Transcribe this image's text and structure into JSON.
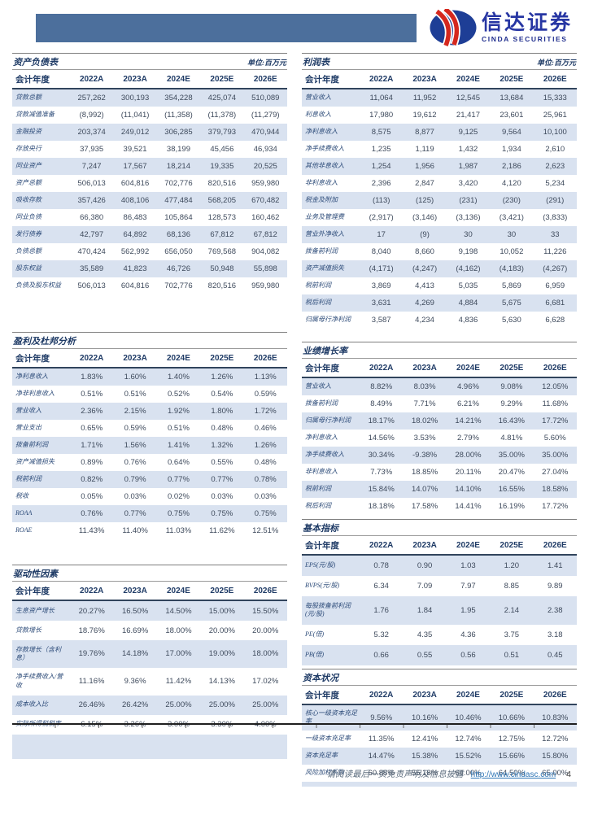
{
  "header": {
    "logo_cn": "信达证券",
    "logo_en": "CINDA SECURITIES",
    "bar_color": "#4C6F9C",
    "logo_blue": "#1E3E96",
    "logo_red": "#D5281E"
  },
  "footer": {
    "disclaimer": "请阅读最后一页免责声明及信息披露",
    "link": "http://www.cindasc.com",
    "page_number": "4"
  },
  "style": {
    "row_shade": "#D9E2F0",
    "header_navy": "#1F3B66"
  },
  "tables": {
    "balance_sheet": {
      "title": "资产负债表",
      "unit": "单位:百万元",
      "columns": [
        "会计年度",
        "2022A",
        "2023A",
        "2024E",
        "2025E",
        "2026E"
      ],
      "rows": [
        {
          "label": "贷款总额",
          "values": [
            "257,262",
            "300,193",
            "354,228",
            "425,074",
            "510,089"
          ]
        },
        {
          "label": "贷款减值准备",
          "values": [
            "(8,992)",
            "(11,041)",
            "(11,358)",
            "(11,378)",
            "(11,279)"
          ]
        },
        {
          "label": "金融投资",
          "values": [
            "203,374",
            "249,012",
            "306,285",
            "379,793",
            "470,944"
          ]
        },
        {
          "label": "存放央行",
          "values": [
            "37,935",
            "39,521",
            "38,199",
            "45,456",
            "46,934"
          ]
        },
        {
          "label": "同业资产",
          "values": [
            "7,247",
            "17,567",
            "18,214",
            "19,335",
            "20,525"
          ]
        },
        {
          "label": "资产总额",
          "values": [
            "506,013",
            "604,816",
            "702,776",
            "820,516",
            "959,980"
          ]
        },
        {
          "label": "吸收存款",
          "values": [
            "357,426",
            "408,106",
            "477,484",
            "568,205",
            "670,482"
          ]
        },
        {
          "label": "同业负债",
          "values": [
            "66,380",
            "86,483",
            "105,864",
            "128,573",
            "160,462"
          ]
        },
        {
          "label": "发行债券",
          "values": [
            "42,797",
            "64,892",
            "68,136",
            "67,812",
            "67,812"
          ]
        },
        {
          "label": "负债总额",
          "values": [
            "470,424",
            "562,992",
            "656,050",
            "769,568",
            "904,082"
          ]
        },
        {
          "label": "股东权益",
          "values": [
            "35,589",
            "41,823",
            "46,726",
            "50,948",
            "55,898"
          ]
        },
        {
          "label": "负债及股东权益",
          "values": [
            "506,013",
            "604,816",
            "702,776",
            "820,516",
            "959,980"
          ]
        }
      ]
    },
    "income_statement": {
      "title": "利润表",
      "unit": "单位:百万元",
      "columns": [
        "会计年度",
        "2022A",
        "2023A",
        "2024E",
        "2025E",
        "2026E"
      ],
      "rows": [
        {
          "label": "营业收入",
          "values": [
            "11,064",
            "11,952",
            "12,545",
            "13,684",
            "15,333"
          ]
        },
        {
          "label": "利息收入",
          "values": [
            "17,980",
            "19,612",
            "21,417",
            "23,601",
            "25,961"
          ]
        },
        {
          "label": "净利息收入",
          "values": [
            "8,575",
            "8,877",
            "9,125",
            "9,564",
            "10,100"
          ]
        },
        {
          "label": "净手续费收入",
          "values": [
            "1,235",
            "1,119",
            "1,432",
            "1,934",
            "2,610"
          ]
        },
        {
          "label": "其他非息收入",
          "values": [
            "1,254",
            "1,956",
            "1,987",
            "2,186",
            "2,623"
          ]
        },
        {
          "label": "非利息收入",
          "values": [
            "2,396",
            "2,847",
            "3,420",
            "4,120",
            "5,234"
          ]
        },
        {
          "label": "税金及附加",
          "values": [
            "(113)",
            "(125)",
            "(231)",
            "(230)",
            "(291)"
          ]
        },
        {
          "label": "业务及管理费",
          "values": [
            "(2,917)",
            "(3,146)",
            "(3,136)",
            "(3,421)",
            "(3,833)"
          ]
        },
        {
          "label": "营业外净收入",
          "values": [
            "17",
            "(9)",
            "30",
            "30",
            "33"
          ]
        },
        {
          "label": "拨备前利润",
          "values": [
            "8,040",
            "8,660",
            "9,198",
            "10,052",
            "11,226"
          ]
        },
        {
          "label": "资产减值损失",
          "values": [
            "(4,171)",
            "(4,247)",
            "(4,162)",
            "(4,183)",
            "(4,267)"
          ]
        },
        {
          "label": "税前利润",
          "values": [
            "3,869",
            "4,413",
            "5,035",
            "5,869",
            "6,959"
          ]
        },
        {
          "label": "税后利润",
          "values": [
            "3,631",
            "4,269",
            "4,884",
            "5,675",
            "6,681"
          ]
        },
        {
          "label": "归属母行净利润",
          "values": [
            "3,587",
            "4,234",
            "4,836",
            "5,630",
            "6,628"
          ]
        }
      ]
    },
    "dupont": {
      "title": "盈利及杜邦分析",
      "unit": "",
      "columns": [
        "会计年度",
        "2022A",
        "2023A",
        "2024E",
        "2025E",
        "2026E"
      ],
      "rows": [
        {
          "label": "净利息收入",
          "values": [
            "1.83%",
            "1.60%",
            "1.40%",
            "1.26%",
            "1.13%"
          ]
        },
        {
          "label": "净非利息收入",
          "values": [
            "0.51%",
            "0.51%",
            "0.52%",
            "0.54%",
            "0.59%"
          ]
        },
        {
          "label": "营业收入",
          "values": [
            "2.36%",
            "2.15%",
            "1.92%",
            "1.80%",
            "1.72%"
          ]
        },
        {
          "label": "营业支出",
          "values": [
            "0.65%",
            "0.59%",
            "0.51%",
            "0.48%",
            "0.46%"
          ]
        },
        {
          "label": "拨备前利润",
          "values": [
            "1.71%",
            "1.56%",
            "1.41%",
            "1.32%",
            "1.26%"
          ]
        },
        {
          "label": "资产减值损失",
          "values": [
            "0.89%",
            "0.76%",
            "0.64%",
            "0.55%",
            "0.48%"
          ]
        },
        {
          "label": "税前利润",
          "values": [
            "0.82%",
            "0.79%",
            "0.77%",
            "0.77%",
            "0.78%"
          ]
        },
        {
          "label": "税收",
          "values": [
            "0.05%",
            "0.03%",
            "0.02%",
            "0.03%",
            "0.03%"
          ]
        },
        {
          "label": "ROAA",
          "values": [
            "0.76%",
            "0.77%",
            "0.75%",
            "0.75%",
            "0.75%"
          ]
        },
        {
          "label": "ROAE",
          "values": [
            "11.43%",
            "11.40%",
            "11.03%",
            "11.62%",
            "12.51%"
          ]
        }
      ]
    },
    "growth": {
      "title": "业绩增长率",
      "unit": "",
      "columns": [
        "会计年度",
        "2022A",
        "2023A",
        "2024E",
        "2025E",
        "2026E"
      ],
      "rows": [
        {
          "label": "营业收入",
          "values": [
            "8.82%",
            "8.03%",
            "4.96%",
            "9.08%",
            "12.05%"
          ]
        },
        {
          "label": "拨备前利润",
          "values": [
            "8.49%",
            "7.71%",
            "6.21%",
            "9.29%",
            "11.68%"
          ]
        },
        {
          "label": "归属母行净利润",
          "values": [
            "18.17%",
            "18.02%",
            "14.21%",
            "16.43%",
            "17.72%"
          ]
        },
        {
          "label": "净利息收入",
          "values": [
            "14.56%",
            "3.53%",
            "2.79%",
            "4.81%",
            "5.60%"
          ]
        },
        {
          "label": "净手续费收入",
          "values": [
            "30.34%",
            "-9.38%",
            "28.00%",
            "35.00%",
            "35.00%"
          ]
        },
        {
          "label": "非利息收入",
          "values": [
            "7.73%",
            "18.85%",
            "20.11%",
            "20.47%",
            "27.04%"
          ]
        },
        {
          "label": "税前利润",
          "values": [
            "15.84%",
            "14.07%",
            "14.10%",
            "16.55%",
            "18.58%"
          ]
        },
        {
          "label": "税后利润",
          "values": [
            "18.18%",
            "17.58%",
            "14.41%",
            "16.19%",
            "17.72%"
          ]
        }
      ]
    },
    "basic_indicators": {
      "title": "基本指标",
      "unit": "",
      "columns": [
        "会计年度",
        "2022A",
        "2023A",
        "2024E",
        "2025E",
        "2026E"
      ],
      "rows": [
        {
          "label": "EPS(元/股)",
          "values": [
            "0.78",
            "0.90",
            "1.03",
            "1.20",
            "1.41"
          ]
        },
        {
          "label": "BVPS(元/股)",
          "values": [
            "6.34",
            "7.09",
            "7.97",
            "8.85",
            "9.89"
          ]
        },
        {
          "label": "每股拨备前利润(元/股)",
          "values": [
            "1.76",
            "1.84",
            "1.95",
            "2.14",
            "2.38"
          ]
        },
        {
          "label": "PE(倍)",
          "values": [
            "5.32",
            "4.35",
            "4.36",
            "3.75",
            "3.18"
          ]
        },
        {
          "label": "PB(倍)",
          "values": [
            "0.66",
            "0.55",
            "0.56",
            "0.51",
            "0.45"
          ]
        }
      ]
    },
    "drivers": {
      "title": "驱动性因素",
      "unit": "",
      "columns": [
        "会计年度",
        "2022A",
        "2023A",
        "2024E",
        "2025E",
        "2026E"
      ],
      "rows": [
        {
          "label": "生息资产增长",
          "values": [
            "20.27%",
            "16.50%",
            "14.50%",
            "15.00%",
            "15.50%"
          ]
        },
        {
          "label": "贷款增长",
          "values": [
            "18.76%",
            "16.69%",
            "18.00%",
            "20.00%",
            "20.00%"
          ]
        },
        {
          "label": "存款增长（含利息）",
          "values": [
            "19.76%",
            "14.18%",
            "17.00%",
            "19.00%",
            "18.00%"
          ]
        },
        {
          "label": "净手续费收入/营收",
          "values": [
            "11.16%",
            "9.36%",
            "11.42%",
            "14.13%",
            "17.02%"
          ]
        },
        {
          "label": "成本收入比",
          "values": [
            "26.46%",
            "26.42%",
            "25.00%",
            "25.00%",
            "25.00%"
          ]
        },
        {
          "label": "实际所得税税率",
          "values": [
            "6.15%",
            "3.26%",
            "3.00%",
            "3.30%",
            "4.00%"
          ]
        }
      ]
    },
    "capital": {
      "title": "资本状况",
      "unit": "",
      "columns": [
        "会计年度",
        "2022A",
        "2023A",
        "2024E",
        "2025E",
        "2026E"
      ],
      "rows": [
        {
          "label": "核心一级资本充足率",
          "values": [
            "9.56%",
            "10.16%",
            "10.46%",
            "10.66%",
            "10.83%"
          ]
        },
        {
          "label": "一级资本充足率",
          "values": [
            "11.35%",
            "12.41%",
            "12.74%",
            "12.75%",
            "12.72%"
          ]
        },
        {
          "label": "资本充足率",
          "values": [
            "14.47%",
            "15.38%",
            "15.52%",
            "15.66%",
            "15.80%"
          ]
        },
        {
          "label": "风险加权系数",
          "values": [
            "60.88%",
            "55.18%",
            "64.00%",
            "64.50%",
            "65.00%"
          ]
        }
      ]
    }
  }
}
